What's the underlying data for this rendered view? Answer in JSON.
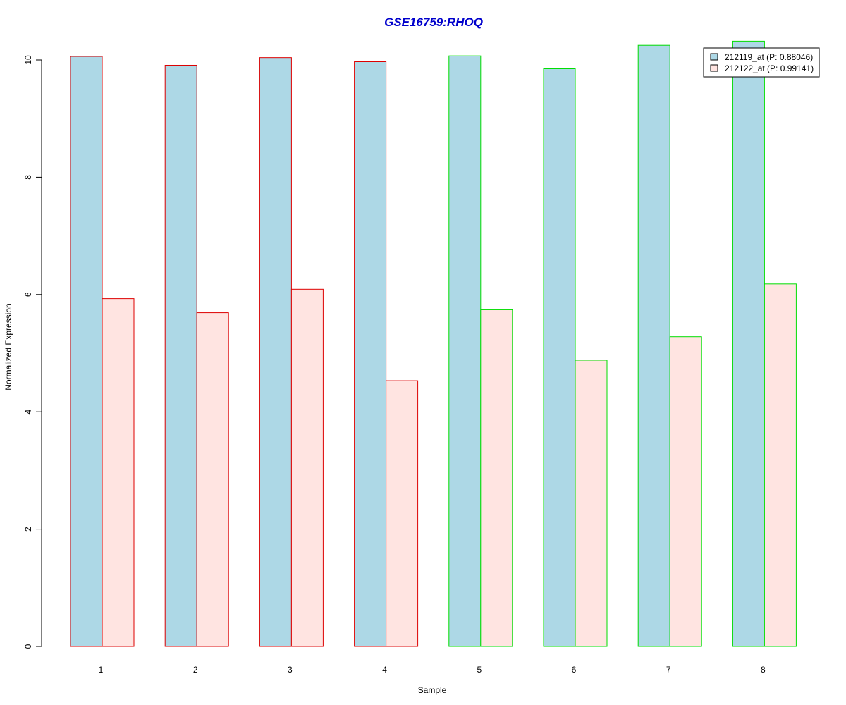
{
  "chart_data": {
    "type": "bar",
    "title": "GSE16759:RHOQ",
    "xlabel": "Sample",
    "ylabel": "Normalized Expression",
    "categories": [
      "1",
      "2",
      "3",
      "4",
      "5",
      "6",
      "7",
      "8"
    ],
    "ylim": [
      0,
      10.4
    ],
    "yticks": [
      "0",
      "2",
      "4",
      "6",
      "8",
      "10"
    ],
    "series": [
      {
        "name": "212119_at (P: 0.88046)",
        "values": [
          10.06,
          9.91,
          10.04,
          9.97,
          10.07,
          9.85,
          10.25,
          10.32
        ]
      },
      {
        "name": "212122_at (P: 0.99141)",
        "values": [
          5.93,
          5.69,
          6.09,
          4.53,
          5.74,
          4.88,
          5.28,
          6.18
        ]
      }
    ],
    "legend_position": "top-right",
    "grid": false
  },
  "colors": {
    "title": "#0000cc",
    "series_fills": [
      "#add8e6",
      "#ffe4e1"
    ],
    "group_borders": [
      "#dd0000",
      "#dd0000",
      "#dd0000",
      "#dd0000",
      "#00dd00",
      "#00dd00",
      "#00dd00",
      "#00dd00"
    ]
  }
}
